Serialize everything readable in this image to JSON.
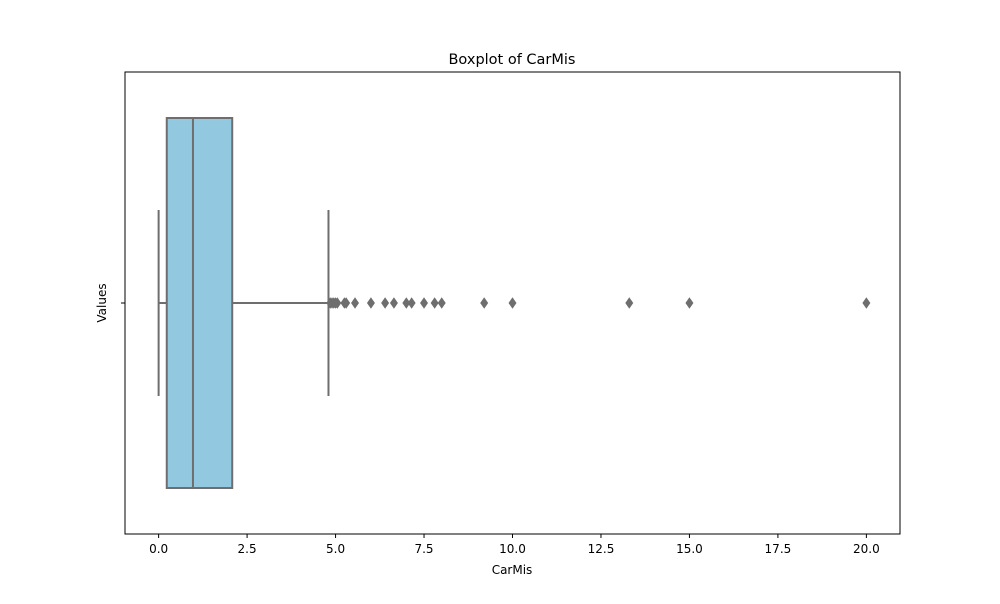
{
  "chart_data": {
    "type": "box",
    "title": "Boxplot of CarMis",
    "xlabel": "CarMis",
    "ylabel": "Values",
    "orientation": "horizontal",
    "xlim": [
      -0.95,
      20.95
    ],
    "x_ticks": [
      0.0,
      2.5,
      5.0,
      7.5,
      10.0,
      12.5,
      15.0,
      17.5,
      20.0
    ],
    "x_tick_labels": [
      "0.0",
      "2.5",
      "5.0",
      "7.5",
      "10.0",
      "12.5",
      "15.0",
      "17.5",
      "20.0"
    ],
    "grid": false,
    "box": {
      "whisker_low": 0.0,
      "q1": 0.23,
      "median": 0.97,
      "q3": 2.08,
      "whisker_high": 4.8
    },
    "outliers": [
      4.85,
      4.9,
      4.95,
      5.0,
      5.05,
      5.25,
      5.3,
      5.55,
      6.0,
      6.4,
      6.65,
      7.0,
      7.15,
      7.5,
      7.8,
      8.0,
      9.2,
      10.0,
      13.3,
      15.0,
      20.0
    ],
    "colors": {
      "box_fill": "#92c9e1",
      "line": "#6e6e6e",
      "outlier": "#6e6e6e"
    }
  }
}
